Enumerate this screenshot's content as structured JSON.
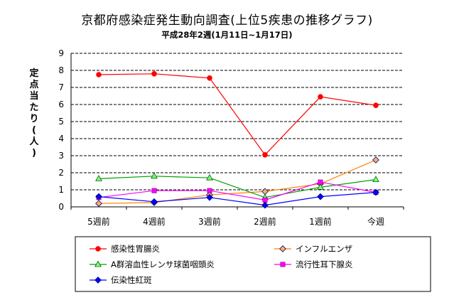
{
  "chart_data": {
    "type": "line",
    "title": "京都府感染症発生動向調査(上位5疾患の推移グラフ)",
    "subtitle": "平成28年2週(1月11日~1月17日)",
    "ylabel": "定点当たり(人)",
    "xlabel": "",
    "categories": [
      "5週前",
      "4週前",
      "3週前",
      "2週前",
      "1週前",
      "今週"
    ],
    "y_ticks": [
      "0",
      "1",
      "2",
      "3",
      "4",
      "5",
      "6",
      "7",
      "8",
      "9"
    ],
    "ylim": [
      0,
      9
    ],
    "grid": "horizontal dashed",
    "legend_position": "bottom",
    "series": [
      {
        "name": "感染性胃腸炎",
        "color": "#ff0000",
        "marker": "circle",
        "values": [
          7.75,
          7.8,
          7.55,
          3.05,
          6.45,
          5.95
        ]
      },
      {
        "name": "インフルエンザ",
        "color": "#ff8000",
        "marker": "diamond",
        "values": [
          0.2,
          0.25,
          0.7,
          0.9,
          1.35,
          2.75
        ]
      },
      {
        "name": "A群溶血性レンサ球菌咽頭炎",
        "color": "#00a000",
        "marker": "triangle",
        "values": [
          1.65,
          1.8,
          1.7,
          0.55,
          1.15,
          1.6
        ]
      },
      {
        "name": "流行性耳下腺炎",
        "color": "#ff00ff",
        "marker": "square",
        "values": [
          0.55,
          0.95,
          0.95,
          0.4,
          1.45,
          0.85
        ]
      },
      {
        "name": "伝染性紅斑",
        "color": "#0000ff",
        "marker": "diamond",
        "values": [
          0.6,
          0.3,
          0.55,
          0.1,
          0.6,
          0.85
        ]
      }
    ]
  }
}
